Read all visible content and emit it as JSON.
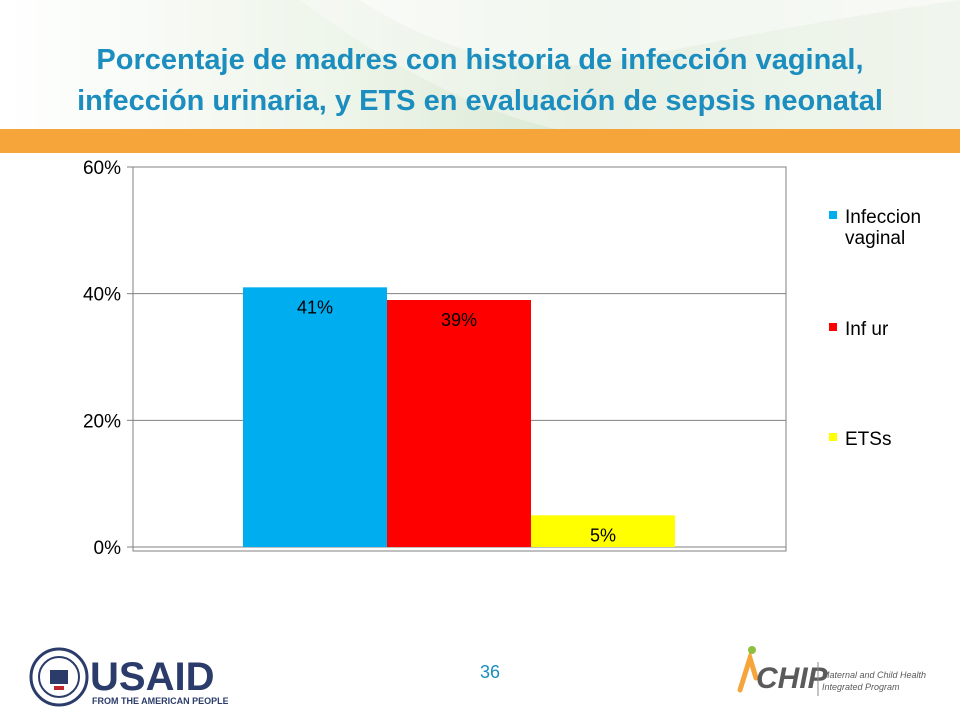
{
  "title_line1": "Porcentaje de madres con historia de  infección vaginal,",
  "title_line2": "infección urinaria, y ETS en evaluación de sepsis neonatal",
  "page_number": "36",
  "logos": {
    "usaid_main": "USAID",
    "usaid_sub": "FROM THE AMERICAN PEOPLE",
    "chip_main": "CHIP",
    "chip_sub1": "Maternal and Child Health",
    "chip_sub2": "Integrated Program"
  },
  "colors": {
    "title": "#1b8dbe",
    "band": "#f5a53a",
    "bar_blue": "#00aeef",
    "bar_red": "#ff0000",
    "bar_yellow": "#ffff00"
  },
  "chart_data": {
    "type": "bar",
    "ylim": [
      0,
      60
    ],
    "yticks": [
      0,
      20,
      40,
      60
    ],
    "ytick_labels": [
      "0%",
      "20%",
      "40%",
      "60%"
    ],
    "grid": true,
    "legend_position": "right",
    "series": [
      {
        "name": "Infeccion vaginal",
        "value": 41,
        "label": "41%",
        "color": "#00aeef",
        "legend_lines": [
          "Infeccion",
          "vaginal"
        ]
      },
      {
        "name": "Inf ur",
        "value": 39,
        "label": "39%",
        "color": "#ff0000",
        "legend_lines": [
          "Inf ur"
        ]
      },
      {
        "name": "ETSs",
        "value": 5,
        "label": "5%",
        "color": "#ffff00",
        "legend_lines": [
          "ETSs"
        ]
      }
    ]
  }
}
